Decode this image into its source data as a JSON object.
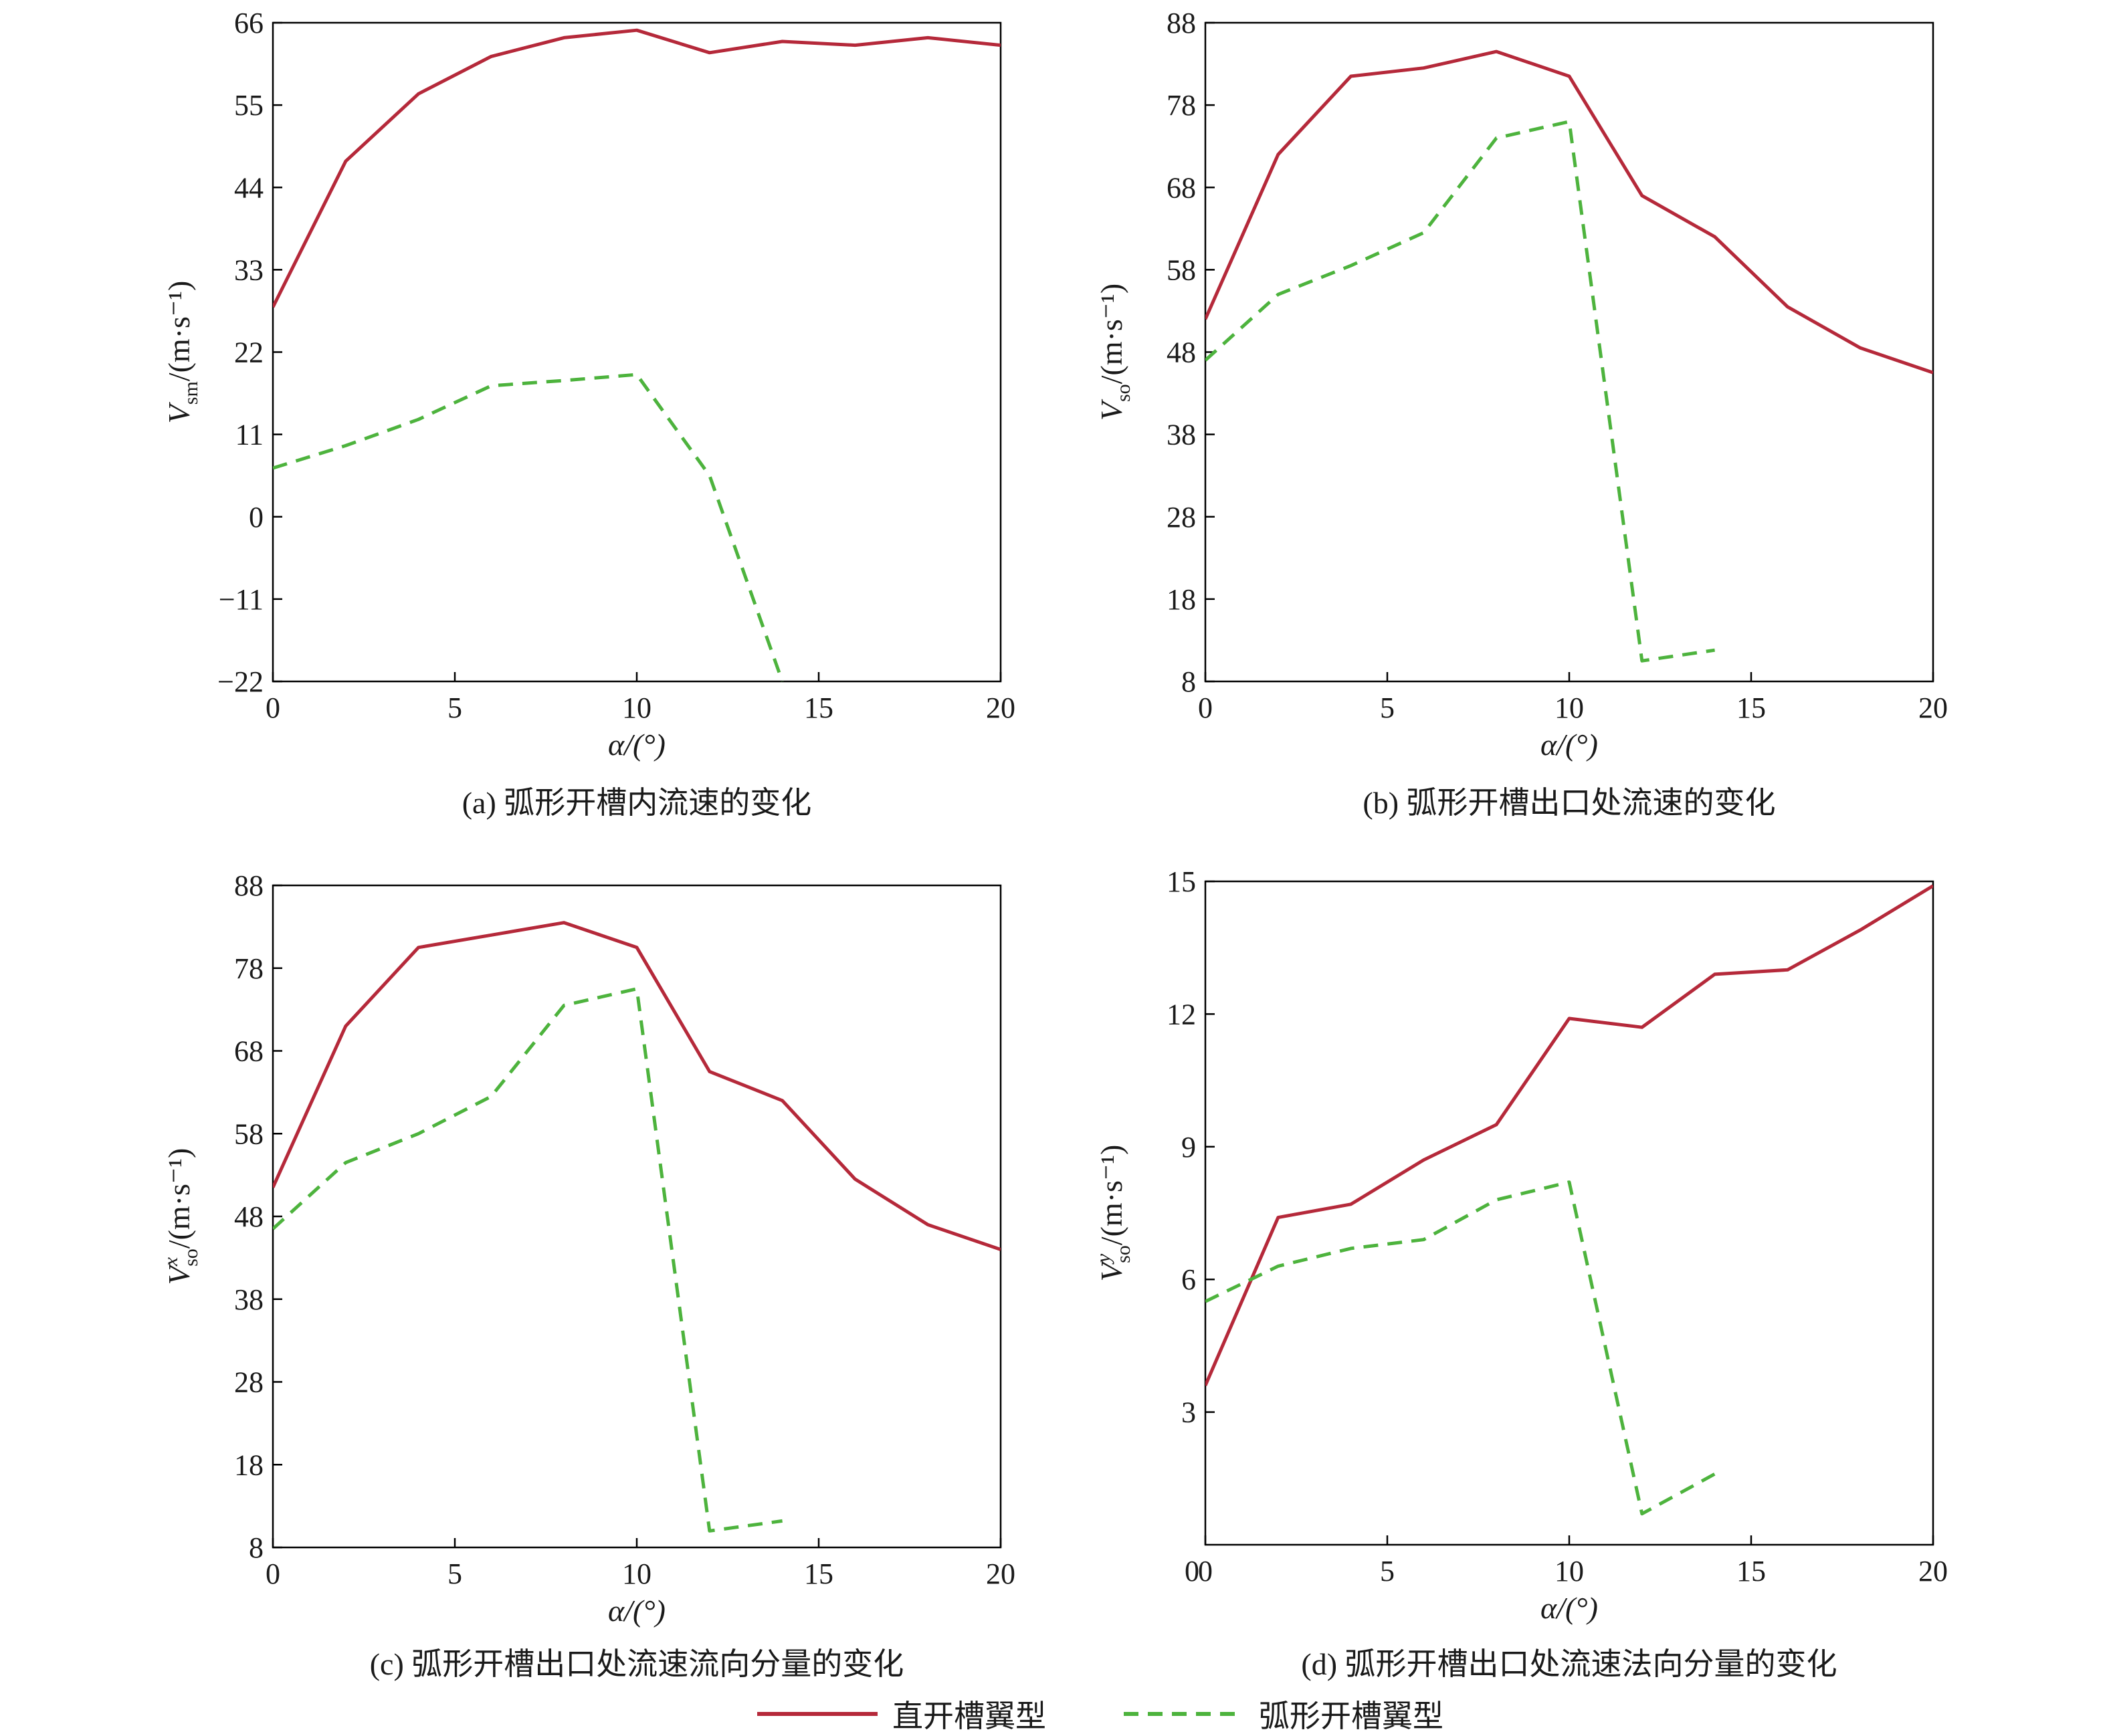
{
  "colors": {
    "straight": "#b5293a",
    "arc": "#4db33d",
    "axis": "#000000"
  },
  "x_axis": {
    "label": "α/(°)",
    "ticks": [
      0,
      5,
      10,
      15,
      20
    ]
  },
  "captions": {
    "a": "(a) 弧形开槽内流速的变化",
    "b": "(b) 弧形开槽出口处流速的变化",
    "c": "(c) 弧形开槽出口处流速流向分量的变化",
    "d": "(d) 弧形开槽出口处流速法向分量的变化"
  },
  "legend": {
    "straight": "直开槽翼型",
    "arc": "弧形开槽翼型"
  },
  "chart_data": [
    {
      "id": "a",
      "type": "line",
      "ylabel": {
        "main": "V",
        "sub": "sm",
        "sup": "",
        "unit": "/(m·s⁻¹)"
      },
      "xlabel": "α/(°)",
      "xlim": [
        0,
        20
      ],
      "ylim": [
        -22,
        66
      ],
      "yticks": [
        66,
        55,
        44,
        33,
        22,
        11,
        0,
        -11,
        -22
      ],
      "ytick_labels": [
        "66",
        "55",
        "44",
        "33",
        "22",
        "11",
        "0",
        "−11",
        "−22"
      ],
      "series": [
        {
          "name": "直开槽翼型",
          "key": "straight",
          "x": [
            0,
            2,
            4,
            6,
            8,
            10,
            12,
            14,
            16,
            18,
            20
          ],
          "y": [
            28,
            47.5,
            56.5,
            61.5,
            64,
            65,
            62,
            63.5,
            63,
            64,
            63
          ]
        },
        {
          "name": "弧形开槽翼型",
          "key": "arc",
          "x": [
            0,
            2,
            4,
            6,
            8,
            10,
            12,
            14
          ],
          "y": [
            6.5,
            9.5,
            13,
            17.5,
            18.2,
            19,
            5.5,
            -22
          ]
        }
      ]
    },
    {
      "id": "b",
      "type": "line",
      "ylabel": {
        "main": "V",
        "sub": "so",
        "sup": "",
        "unit": "/(m·s⁻¹)"
      },
      "xlabel": "α/(°)",
      "xlim": [
        0,
        20
      ],
      "ylim": [
        8,
        88
      ],
      "yticks": [
        88,
        78,
        68,
        58,
        48,
        38,
        28,
        18,
        8
      ],
      "ytick_labels": [
        "88",
        "78",
        "68",
        "58",
        "48",
        "38",
        "28",
        "18",
        "8"
      ],
      "series": [
        {
          "name": "直开槽翼型",
          "key": "straight",
          "x": [
            0,
            2,
            4,
            6,
            8,
            10,
            12,
            14,
            16,
            18,
            20
          ],
          "y": [
            52,
            72,
            81.5,
            82.5,
            84.5,
            81.5,
            67,
            62,
            53.5,
            48.5,
            45.5
          ]
        },
        {
          "name": "弧形开槽翼型",
          "key": "arc",
          "x": [
            0,
            2,
            4,
            6,
            8,
            10,
            12,
            14
          ],
          "y": [
            47,
            55,
            58.5,
            62.5,
            74,
            76,
            10.5,
            11.8
          ]
        }
      ]
    },
    {
      "id": "c",
      "type": "line",
      "ylabel": {
        "main": "V",
        "sub": "so",
        "sup": "x",
        "unit": "/(m·s⁻¹)"
      },
      "xlabel": "α/(°)",
      "xlim": [
        0,
        20
      ],
      "ylim": [
        8,
        88
      ],
      "yticks": [
        88,
        78,
        68,
        58,
        48,
        38,
        28,
        18,
        8
      ],
      "ytick_labels": [
        "88",
        "78",
        "68",
        "58",
        "48",
        "38",
        "28",
        "18",
        "8"
      ],
      "series": [
        {
          "name": "直开槽翼型",
          "key": "straight",
          "x": [
            0,
            2,
            4,
            6,
            8,
            10,
            12,
            14,
            16,
            18,
            20
          ],
          "y": [
            51.5,
            71,
            80.5,
            82,
            83.5,
            80.5,
            65.5,
            62,
            52.5,
            47,
            44
          ]
        },
        {
          "name": "弧形开槽翼型",
          "key": "arc",
          "x": [
            0,
            2,
            4,
            6,
            8,
            10,
            12,
            14
          ],
          "y": [
            46.5,
            54.5,
            58,
            62.5,
            73.5,
            75.5,
            10,
            11.2
          ]
        }
      ]
    },
    {
      "id": "d",
      "type": "line",
      "ylabel": {
        "main": "V",
        "sub": "so",
        "sup": "y",
        "unit": "/(m·s⁻¹)"
      },
      "xlabel": "α/(°)",
      "xlim": [
        0,
        20
      ],
      "ylim": [
        0,
        15
      ],
      "yticks": [
        15,
        12,
        9,
        6,
        3
      ],
      "ytick_labels": [
        "15",
        "12",
        "9",
        "6",
        "3"
      ],
      "series": [
        {
          "name": "直开槽翼型",
          "key": "straight",
          "x": [
            0,
            2,
            4,
            6,
            8,
            10,
            12,
            14,
            16,
            18,
            20
          ],
          "y": [
            3.6,
            7.4,
            7.7,
            8.7,
            9.5,
            11.9,
            11.7,
            12.9,
            13,
            13.9,
            14.9
          ]
        },
        {
          "name": "弧形开槽翼型",
          "key": "arc",
          "x": [
            0,
            2,
            4,
            6,
            8,
            10,
            12,
            14
          ],
          "y": [
            5.5,
            6.3,
            6.7,
            6.9,
            7.8,
            8.2,
            0.7,
            1.6
          ]
        }
      ]
    }
  ]
}
